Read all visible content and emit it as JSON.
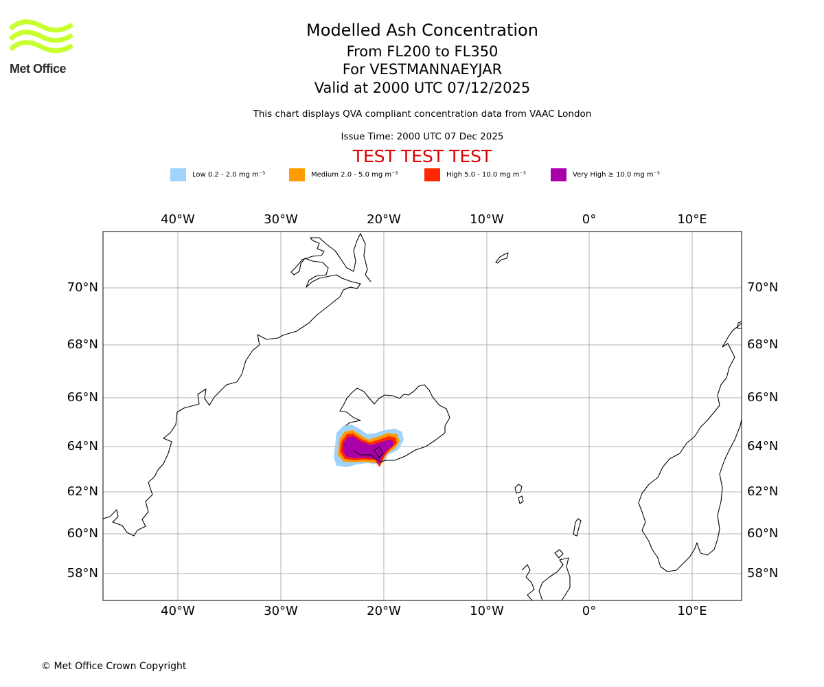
{
  "header": {
    "logo_text": "Met Office",
    "title": "Modelled Ash Concentration",
    "levels": "From FL200 to FL350",
    "location": "For VESTMANNAEYJAR",
    "valid": "Valid at 2000 UTC 07/12/2025",
    "description": "This chart displays QVA compliant concentration data from VAAC London",
    "issue_time": "Issue Time: 2000 UTC 07 Dec 2025",
    "test_banner": "TEST TEST TEST"
  },
  "legend": [
    {
      "label": "Low 0.2 - 2.0 mg m⁻³",
      "color": "#a0d2fa"
    },
    {
      "label": "Medium 2.0 - 5.0 mg m⁻³",
      "color": "#ff9b00"
    },
    {
      "label": "High 5.0 - 10.0 mg m⁻³",
      "color": "#ff2800"
    },
    {
      "label": "Very High  ≥  10.0 mg m⁻³",
      "color": "#aa00aa"
    }
  ],
  "map": {
    "longitude_labels": [
      "40°W",
      "30°W",
      "20°W",
      "10°W",
      "0°",
      "10°E"
    ],
    "latitude_labels": [
      "70°N",
      "68°N",
      "66°N",
      "64°N",
      "62°N",
      "60°N",
      "58°N"
    ],
    "colors": {
      "coast": "#000000",
      "grid": "#b0b0b0"
    }
  },
  "footer": {
    "copyright": "© Met Office Crown Copyright"
  }
}
